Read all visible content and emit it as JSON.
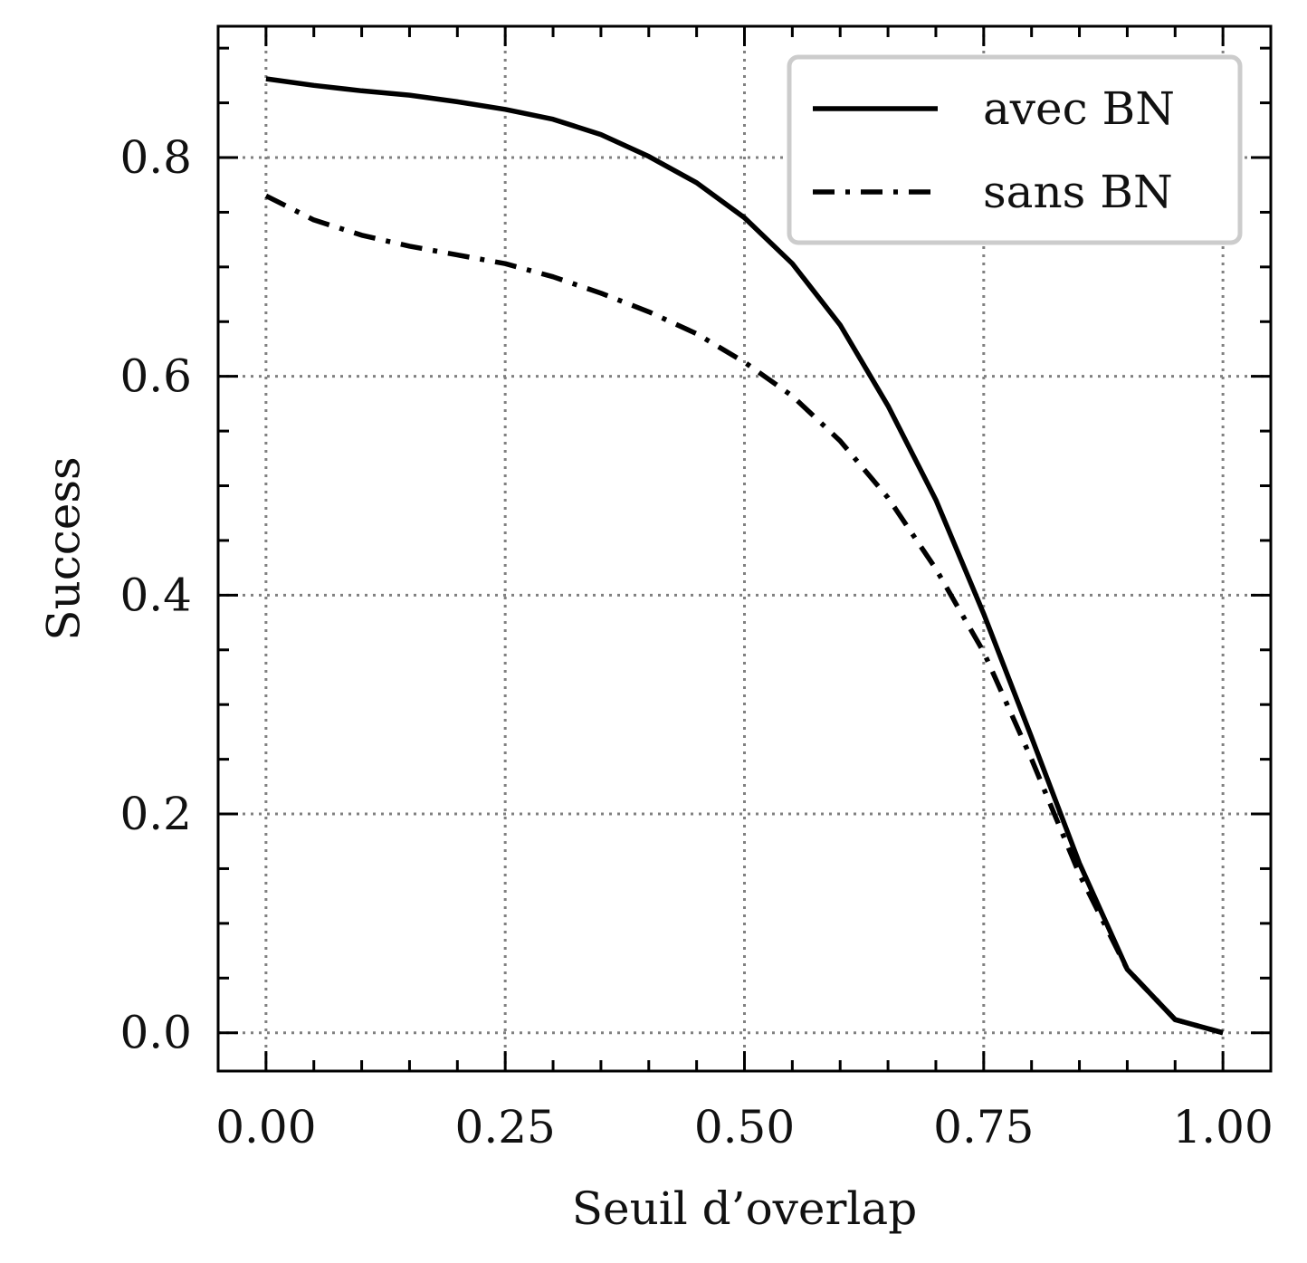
{
  "chart_data": {
    "type": "line",
    "title": "",
    "xlabel": "Seuil d’overlap",
    "ylabel": "Success",
    "xlim": [
      -0.05,
      1.05
    ],
    "ylim": [
      -0.035,
      0.92
    ],
    "xticks": [
      0.0,
      0.25,
      0.5,
      0.75,
      1.0
    ],
    "xtick_labels": [
      "0.00",
      "0.25",
      "0.50",
      "0.75",
      "1.00"
    ],
    "yticks": [
      0.0,
      0.2,
      0.4,
      0.6,
      0.8
    ],
    "ytick_labels": [
      "0.0",
      "0.2",
      "0.4",
      "0.6",
      "0.8"
    ],
    "grid": true,
    "legend_position": "top-right",
    "x": [
      0.0,
      0.05,
      0.1,
      0.15,
      0.2,
      0.25,
      0.3,
      0.35,
      0.4,
      0.45,
      0.5,
      0.55,
      0.6,
      0.65,
      0.7,
      0.75,
      0.8,
      0.85,
      0.9,
      0.95,
      1.0
    ],
    "series": [
      {
        "name": "avec BN",
        "style": "solid",
        "color": "#000000",
        "values": [
          0.872,
          0.866,
          0.861,
          0.857,
          0.851,
          0.844,
          0.835,
          0.821,
          0.801,
          0.777,
          0.745,
          0.703,
          0.647,
          0.573,
          0.487,
          0.383,
          0.27,
          0.155,
          0.058,
          0.012,
          0.0
        ]
      },
      {
        "name": "sans BN",
        "style": "dashdot",
        "color": "#000000",
        "values": [
          0.765,
          0.743,
          0.729,
          0.719,
          0.711,
          0.703,
          0.691,
          0.676,
          0.659,
          0.639,
          0.613,
          0.582,
          0.541,
          0.489,
          0.424,
          0.348,
          0.25,
          0.145,
          0.058,
          0.012,
          0.0
        ]
      }
    ]
  }
}
